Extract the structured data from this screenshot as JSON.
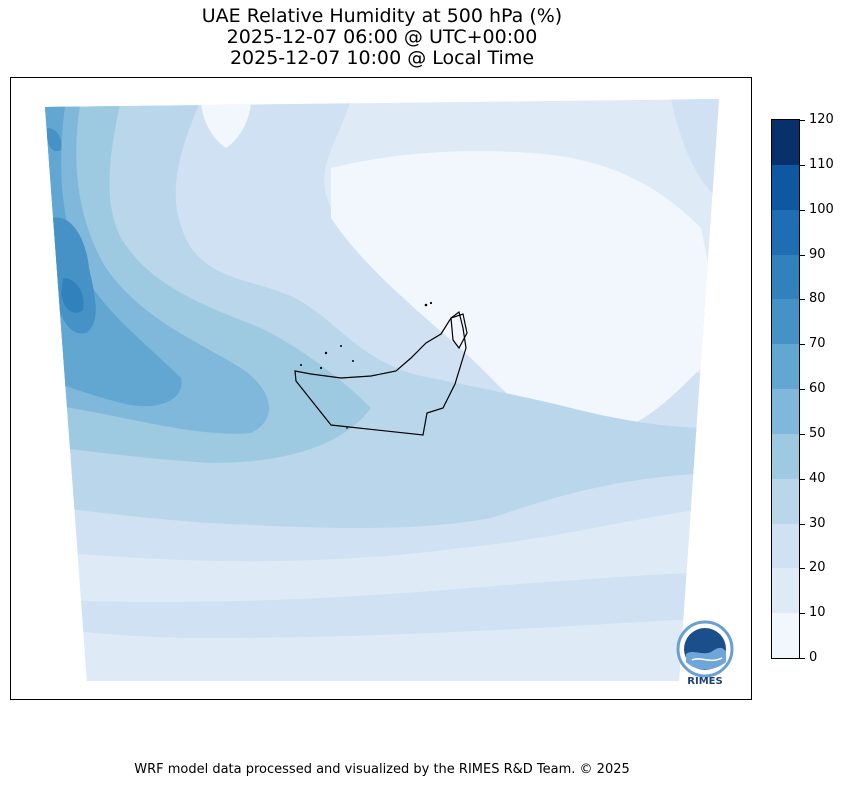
{
  "title": {
    "line1": "UAE Relative Humidity at 500 hPa (%)",
    "line2": "2025-12-07 06:00 @ UTC+00:00",
    "line3": "2025-12-07 10:00 @ Local Time"
  },
  "colorbar": {
    "ticks": [
      "0",
      "10",
      "20",
      "30",
      "40",
      "50",
      "60",
      "70",
      "80",
      "90",
      "100",
      "110",
      "120"
    ],
    "colors": [
      "#f1f7fd",
      "#deebf7",
      "#cfe1f2",
      "#b9d6eb",
      "#9ecae1",
      "#7fb8da",
      "#62a7d2",
      "#4692c6",
      "#3181bd",
      "#1f6eb3",
      "#0e58a2",
      "#08306b"
    ]
  },
  "logo": {
    "text": "RIMES"
  },
  "footer": "WRF model data processed and visualized by the RIMES R&D Team. © 2025"
}
